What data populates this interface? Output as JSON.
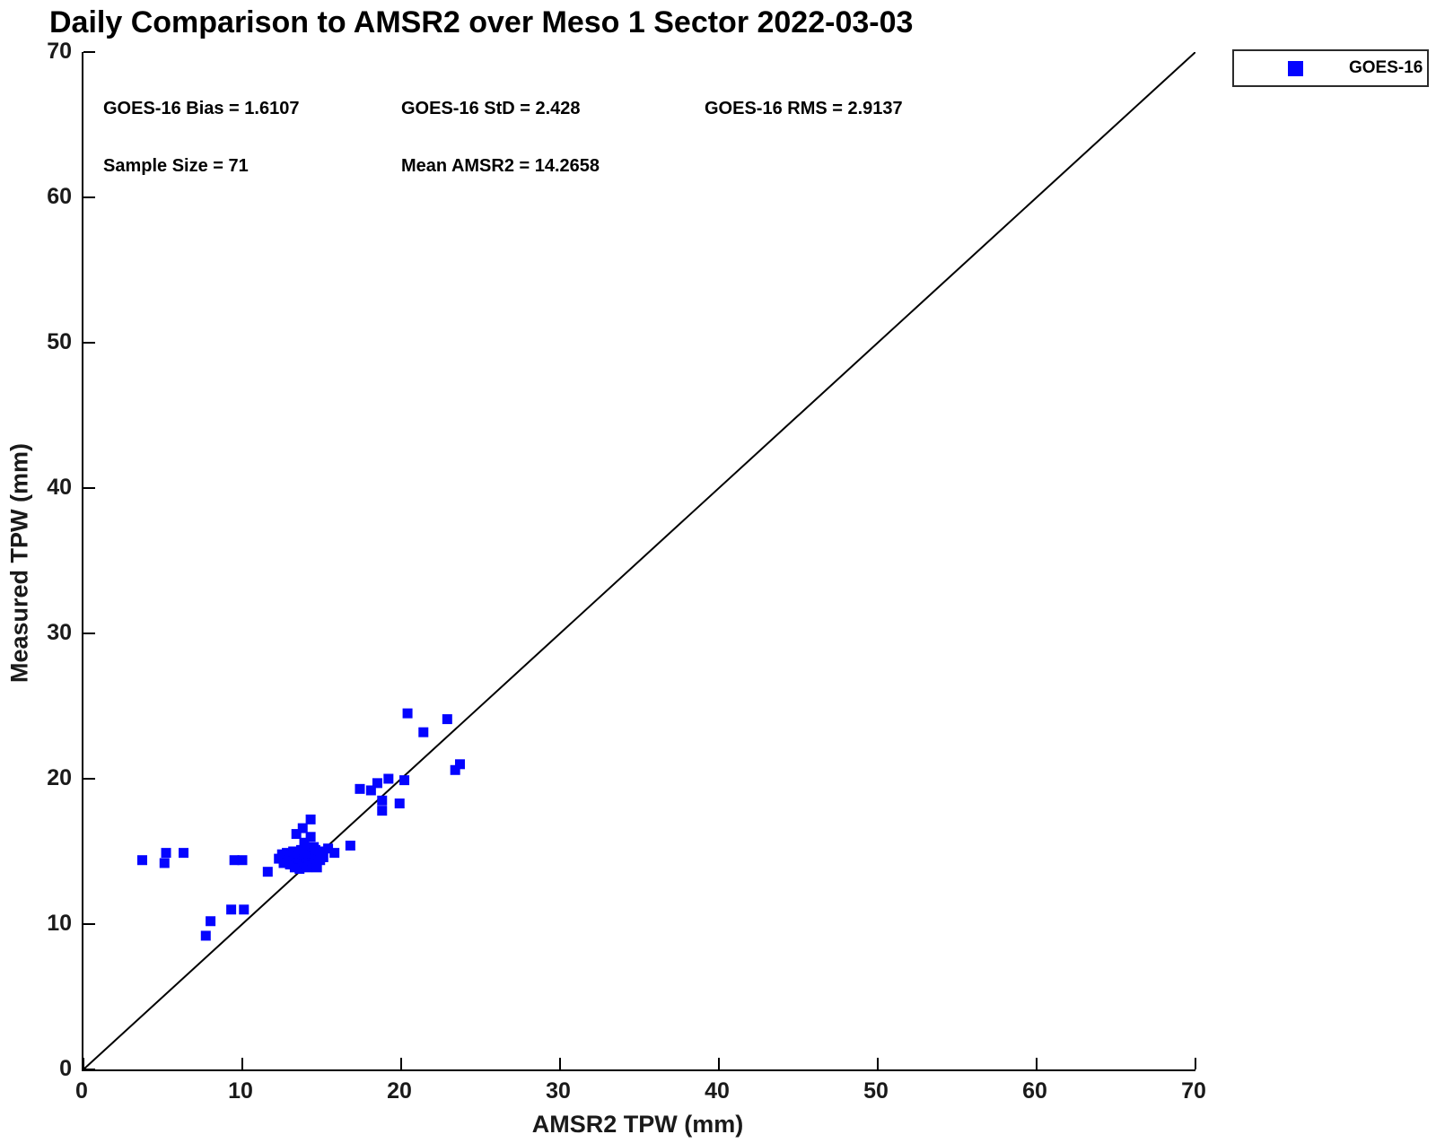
{
  "chart_data": {
    "type": "scatter",
    "title": "Daily Comparison to AMSR2 over Meso 1 Sector 2022-03-03",
    "xlabel": "AMSR2 TPW (mm)",
    "ylabel": "Measured TPW (mm)",
    "xlim": [
      0,
      70
    ],
    "ylim": [
      0,
      70
    ],
    "x_ticks": [
      "0",
      "10",
      "20",
      "30",
      "40",
      "50",
      "60",
      "70"
    ],
    "y_ticks": [
      "0",
      "10",
      "20",
      "30",
      "40",
      "50",
      "60",
      "70"
    ],
    "grid": false,
    "legend_position": "top-right-outside",
    "annotations": [
      {
        "text": "GOES-16 Bias = 1.6107"
      },
      {
        "text": "GOES-16 StD = 2.428"
      },
      {
        "text": "GOES-16 RMS = 2.9137"
      },
      {
        "text": "Sample Size = 71"
      },
      {
        "text": "Mean AMSR2 = 14.2658"
      }
    ],
    "reference_line": {
      "name": "identity-1-to-1",
      "from": [
        0,
        0
      ],
      "to": [
        70,
        70
      ],
      "color": "#000000",
      "width": 2
    },
    "series": [
      {
        "name": "GOES-16",
        "marker": "filled-square",
        "color": "#0404ff",
        "sample_size": 71,
        "points": [
          [
            3.7,
            14.4
          ],
          [
            5.1,
            14.2
          ],
          [
            5.2,
            14.9
          ],
          [
            6.3,
            14.9
          ],
          [
            7.7,
            9.2
          ],
          [
            8.0,
            10.2
          ],
          [
            9.3,
            11.0
          ],
          [
            10.1,
            11.0
          ],
          [
            9.5,
            14.4
          ],
          [
            10.0,
            14.4
          ],
          [
            11.6,
            13.6
          ],
          [
            12.3,
            14.5
          ],
          [
            12.5,
            14.8
          ],
          [
            12.6,
            14.2
          ],
          [
            12.8,
            14.9
          ],
          [
            12.9,
            14.4
          ],
          [
            13.0,
            14.1
          ],
          [
            13.0,
            14.5
          ],
          [
            13.1,
            14.7
          ],
          [
            13.2,
            14.3
          ],
          [
            13.2,
            15.0
          ],
          [
            13.3,
            13.9
          ],
          [
            13.3,
            14.7
          ],
          [
            13.4,
            14.6
          ],
          [
            13.4,
            16.2
          ],
          [
            13.5,
            14.2
          ],
          [
            13.5,
            14.9
          ],
          [
            13.6,
            13.8
          ],
          [
            13.6,
            14.5
          ],
          [
            13.6,
            14.9
          ],
          [
            13.7,
            15.1
          ],
          [
            13.8,
            14.3
          ],
          [
            13.8,
            16.6
          ],
          [
            13.9,
            14.2
          ],
          [
            13.9,
            14.8
          ],
          [
            13.9,
            15.6
          ],
          [
            14.0,
            14.1
          ],
          [
            14.0,
            14.6
          ],
          [
            14.1,
            13.9
          ],
          [
            14.1,
            15.0
          ],
          [
            14.2,
            14.4
          ],
          [
            14.2,
            14.9
          ],
          [
            14.3,
            16.0
          ],
          [
            14.3,
            17.2
          ],
          [
            14.4,
            14.0
          ],
          [
            14.4,
            14.7
          ],
          [
            14.5,
            14.2
          ],
          [
            14.5,
            15.3
          ],
          [
            14.6,
            14.5
          ],
          [
            14.6,
            15.1
          ],
          [
            14.7,
            13.9
          ],
          [
            14.8,
            14.8
          ],
          [
            14.9,
            14.4
          ],
          [
            15.0,
            15.0
          ],
          [
            15.1,
            14.6
          ],
          [
            15.4,
            15.2
          ],
          [
            15.8,
            14.9
          ],
          [
            16.8,
            15.4
          ],
          [
            17.4,
            19.3
          ],
          [
            18.1,
            19.2
          ],
          [
            18.5,
            19.7
          ],
          [
            19.2,
            20.0
          ],
          [
            20.2,
            19.9
          ],
          [
            18.8,
            18.5
          ],
          [
            19.9,
            18.3
          ],
          [
            18.8,
            17.8
          ],
          [
            20.4,
            24.5
          ],
          [
            21.4,
            23.2
          ],
          [
            22.9,
            24.1
          ],
          [
            23.4,
            20.6
          ],
          [
            23.7,
            21.0
          ]
        ]
      }
    ]
  }
}
